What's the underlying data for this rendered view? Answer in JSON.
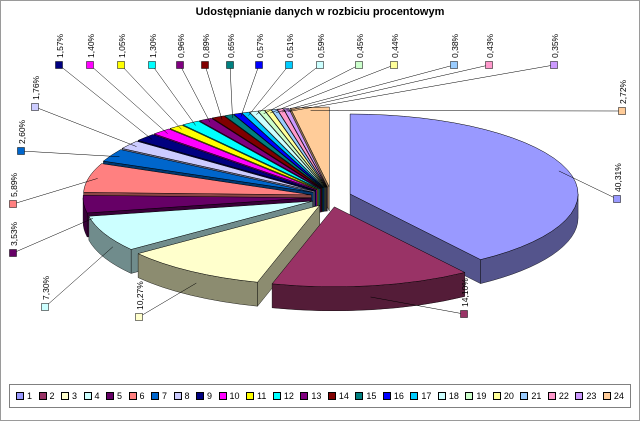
{
  "chart_data": {
    "type": "pie",
    "title": "Udostępnianie danych w rozbiciu procentowym",
    "legend_position": "bottom",
    "labels": [
      "1",
      "2",
      "3",
      "4",
      "5",
      "6",
      "7",
      "8",
      "9",
      "10",
      "11",
      "12",
      "13",
      "14",
      "15",
      "16",
      "17",
      "18",
      "19",
      "20",
      "21",
      "22",
      "23",
      "24"
    ],
    "values": [
      40.31,
      14.1,
      10.27,
      7.3,
      3.53,
      5.89,
      2.6,
      1.76,
      1.57,
      1.4,
      1.05,
      1.3,
      0.96,
      0.89,
      0.65,
      0.57,
      0.51,
      0.59,
      0.45,
      0.44,
      0.38,
      0.43,
      0.35,
      2.72
    ],
    "value_labels": [
      "40,31%",
      "14,10%",
      "10,27%",
      "7,30%",
      "3,53%",
      "5,89%",
      "2,60%",
      "1,76%",
      "1,57%",
      "1,40%",
      "1,05%",
      "1,30%",
      "0,96%",
      "0,89%",
      "0,65%",
      "0,57%",
      "0,51%",
      "0,59%",
      "0,45%",
      "0,44%",
      "0,38%",
      "0,43%",
      "0,35%",
      "2,72%"
    ],
    "colors": [
      "#9999FF",
      "#993366",
      "#FFFFCC",
      "#CCFFFF",
      "#660066",
      "#FF8080",
      "#0066CC",
      "#CCCCFF",
      "#000080",
      "#FF00FF",
      "#FFFF00",
      "#00FFFF",
      "#800080",
      "#800000",
      "#008080",
      "#0000FF",
      "#00CCFF",
      "#CCFFFF",
      "#CCFFCC",
      "#FFFF99",
      "#99CCFF",
      "#FF99CC",
      "#CC99FF",
      "#FFCC99"
    ]
  }
}
